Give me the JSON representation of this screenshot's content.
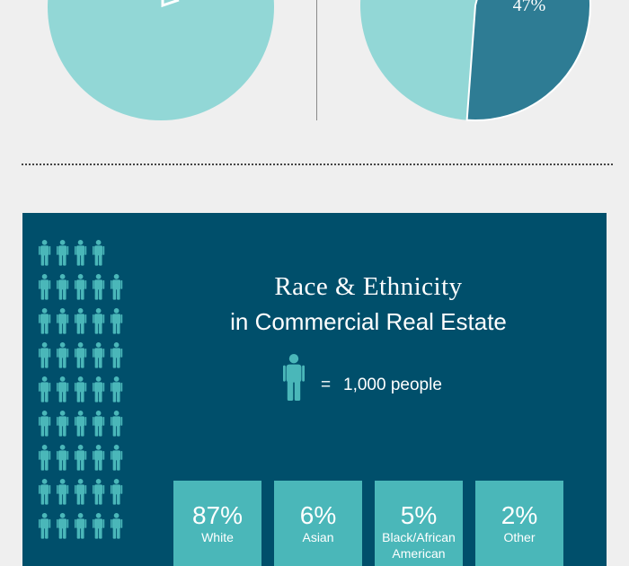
{
  "top_pies": {
    "left_pie": {
      "color": "#92d7d6",
      "pointer_color": "#ffffff"
    },
    "right_pie": {
      "label": "47%",
      "slices": [
        {
          "value": 53,
          "color": "#92d7d6"
        },
        {
          "value": 47,
          "color": "#2e7c94"
        }
      ]
    }
  },
  "panel": {
    "background": "#004f6b",
    "title": "Race & Ethnicity",
    "subtitle": "in Commercial Real Estate",
    "legend": {
      "equals": "=",
      "value": "1,000 people",
      "icon": "person-icon"
    },
    "person_color": "#4ab7b9"
  },
  "chart_data": {
    "type": "bar",
    "title": "Race & Ethnicity",
    "subtitle": "in Commercial Real Estate",
    "unit_note": "= 1,000 people",
    "categories": [
      "White",
      "Asian",
      "Black/African American",
      "Other"
    ],
    "values": [
      87,
      6,
      5,
      2
    ],
    "value_labels": [
      "87%",
      "6%",
      "5%",
      "2%"
    ],
    "display_labels": [
      [
        "White"
      ],
      [
        "Asian"
      ],
      [
        "Black/African",
        "American"
      ],
      [
        "Other"
      ]
    ]
  }
}
